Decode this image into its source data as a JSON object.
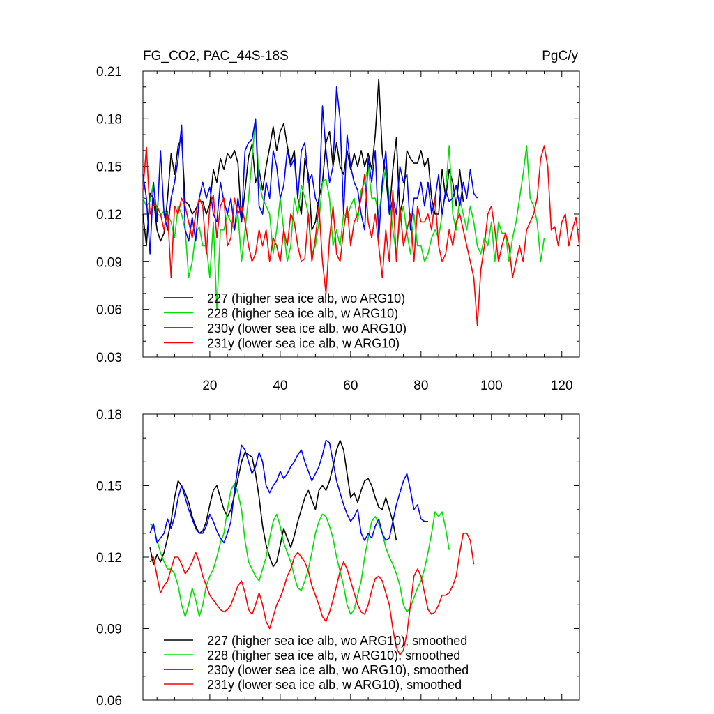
{
  "chart_data": [
    {
      "type": "line",
      "title": "FG_CO2, PAC_44S-18S",
      "units": "PgC/y",
      "xlabel": "",
      "ylabel": "",
      "xlim": [
        1,
        125
      ],
      "ylim": [
        0.03,
        0.21
      ],
      "yticks": [
        "0.03",
        "0.06",
        "0.09",
        "0.12",
        "0.15",
        "0.18",
        "0.21"
      ],
      "xticks": [
        "20",
        "40",
        "60",
        "80",
        "100",
        "120"
      ],
      "legend_position": "bottom-left",
      "series": [
        {
          "name": "227 (higher sea ice alb, wo ARG10)",
          "color": "#000000",
          "x0": 1,
          "values": [
            0.12,
            0.1,
            0.133,
            0.13,
            0.11,
            0.103,
            0.108,
            0.13,
            0.158,
            0.145,
            0.163,
            0.168,
            0.128,
            0.126,
            0.12,
            0.123,
            0.128,
            0.128,
            0.12,
            0.126,
            0.148,
            0.14,
            0.155,
            0.148,
            0.158,
            0.155,
            0.16,
            0.152,
            0.115,
            0.135,
            0.156,
            0.164,
            0.14,
            0.148,
            0.135,
            0.15,
            0.162,
            0.175,
            0.16,
            0.172,
            0.177,
            0.163,
            0.152,
            0.16,
            0.13,
            0.12,
            0.155,
            0.145,
            0.11,
            0.115,
            0.13,
            0.14,
            0.165,
            0.172,
            0.15,
            0.165,
            0.15,
            0.145,
            0.16,
            0.148,
            0.158,
            0.15,
            0.16,
            0.15,
            0.158,
            0.148,
            0.17,
            0.205,
            0.158,
            0.145,
            0.12,
            0.148,
            0.168,
            0.12,
            0.13,
            0.16,
            0.155,
            0.152,
            0.152,
            0.16,
            0.15,
            0.155,
            0.13,
            0.12,
            0.12,
            0.148,
            0.13,
            0.148,
            0.14,
            0.125,
            0.148,
            0.128
          ]
        },
        {
          "name": "228 (higher sea ice alb, w ARG10)",
          "color": "#00e000",
          "x0": 1,
          "values": [
            0.13,
            0.125,
            0.128,
            0.14,
            0.12,
            0.119,
            0.122,
            0.12,
            0.115,
            0.105,
            0.125,
            0.12,
            0.11,
            0.08,
            0.09,
            0.108,
            0.112,
            0.1,
            0.1,
            0.08,
            0.115,
            0.06,
            0.11,
            0.11,
            0.12,
            0.115,
            0.11,
            0.12,
            0.09,
            0.11,
            0.13,
            0.155,
            0.18,
            0.14,
            0.13,
            0.125,
            0.12,
            0.095,
            0.11,
            0.13,
            0.11,
            0.09,
            0.1,
            0.13,
            0.12,
            0.138,
            0.13,
            0.12,
            0.095,
            0.1,
            0.115,
            0.14,
            0.142,
            0.13,
            0.1,
            0.11,
            0.1,
            0.12,
            0.118,
            0.125,
            0.13,
            0.115,
            0.135,
            0.14,
            0.15,
            0.13,
            0.13,
            0.12,
            0.135,
            0.15,
            0.13,
            0.11,
            0.095,
            0.115,
            0.125,
            0.108,
            0.095,
            0.12,
            0.1,
            0.1,
            0.09,
            0.095,
            0.105,
            0.11,
            0.105,
            0.12,
            0.135,
            0.163,
            0.12,
            0.11,
            0.13,
            0.12,
            0.11,
            0.125,
            0.115,
            0.1,
            0.095,
            0.105,
            0.1,
            0.115,
            0.09,
            0.115,
            0.108,
            0.108,
            0.09,
            0.105,
            0.115,
            0.13,
            0.145,
            0.163,
            0.13,
            0.125,
            0.115,
            0.09,
            0.105
          ]
        },
        {
          "name": "230y (lower sea ice alb, wo ARG10)",
          "color": "#0000ff",
          "x0": 1,
          "values": [
            0.145,
            0.13,
            0.095,
            0.14,
            0.115,
            0.16,
            0.12,
            0.11,
            0.13,
            0.14,
            0.155,
            0.176,
            0.11,
            0.103,
            0.118,
            0.103,
            0.13,
            0.14,
            0.13,
            0.137,
            0.12,
            0.115,
            0.14,
            0.128,
            0.12,
            0.13,
            0.11,
            0.13,
            0.115,
            0.16,
            0.165,
            0.167,
            0.18,
            0.125,
            0.12,
            0.14,
            0.13,
            0.16,
            0.15,
            0.13,
            0.138,
            0.16,
            0.15,
            0.155,
            0.13,
            0.16,
            0.165,
            0.14,
            0.145,
            0.13,
            0.125,
            0.188,
            0.16,
            0.14,
            0.15,
            0.2,
            0.18,
            0.12,
            0.17,
            0.15,
            0.14,
            0.135,
            0.12,
            0.11,
            0.155,
            0.14,
            0.16,
            0.105,
            0.14,
            0.16,
            0.12,
            0.13,
            0.12,
            0.15,
            0.14,
            0.145,
            0.11,
            0.13,
            0.13,
            0.14,
            0.125,
            0.14,
            0.12,
            0.13,
            0.145,
            0.12,
            0.135,
            0.128,
            0.13,
            0.138,
            0.125,
            0.14,
            0.13,
            0.148,
            0.133,
            0.13
          ]
        },
        {
          "name": "231y (lower sea ice alb, w ARG10)",
          "color": "#ff0000",
          "x0": 1,
          "values": [
            0.135,
            0.162,
            0.12,
            0.126,
            0.125,
            0.12,
            0.11,
            0.122,
            0.08,
            0.125,
            0.12,
            0.13,
            0.125,
            0.115,
            0.105,
            0.12,
            0.13,
            0.125,
            0.095,
            0.125,
            0.132,
            0.105,
            0.125,
            0.13,
            0.1,
            0.105,
            0.13,
            0.12,
            0.125,
            0.115,
            0.1,
            0.09,
            0.095,
            0.11,
            0.1,
            0.11,
            0.09,
            0.105,
            0.1,
            0.09,
            0.11,
            0.1,
            0.12,
            0.115,
            0.1,
            0.09,
            0.092,
            0.12,
            0.09,
            0.105,
            0.125,
            0.09,
            0.07,
            0.105,
            0.125,
            0.095,
            0.09,
            0.11,
            0.125,
            0.1,
            0.115,
            0.12,
            0.13,
            0.145,
            0.115,
            0.105,
            0.12,
            0.1,
            0.08,
            0.11,
            0.09,
            0.135,
            0.09,
            0.125,
            0.1,
            0.11,
            0.12,
            0.09,
            0.125,
            0.115,
            0.115,
            0.12,
            0.11,
            0.13,
            0.1,
            0.09,
            0.095,
            0.11,
            0.1,
            0.115,
            0.12,
            0.11,
            0.1,
            0.09,
            0.08,
            0.05,
            0.085,
            0.1,
            0.12,
            0.125,
            0.11,
            0.09,
            0.1,
            0.108,
            0.1,
            0.08,
            0.09,
            0.1,
            0.09,
            0.11,
            0.115,
            0.12,
            0.13,
            0.155,
            0.163,
            0.15,
            0.11,
            0.112,
            0.1,
            0.115,
            0.12,
            0.1,
            0.11,
            0.118,
            0.1
          ]
        }
      ]
    },
    {
      "type": "line",
      "title": "",
      "xlabel": "",
      "ylabel": "",
      "xlim": [
        1,
        125
      ],
      "ylim": [
        0.06,
        0.18
      ],
      "yticks": [
        "0.06",
        "0.09",
        "0.12",
        "0.15",
        "0.18"
      ],
      "legend_position": "bottom-left",
      "series": [
        {
          "name": "227 (higher sea ice alb, wo ARG10), smoothed",
          "color": "#000000",
          "x0": 3,
          "values": [
            0.124,
            0.117,
            0.121,
            0.118,
            0.122,
            0.128,
            0.135,
            0.145,
            0.152,
            0.15,
            0.147,
            0.143,
            0.137,
            0.133,
            0.13,
            0.131,
            0.135,
            0.142,
            0.148,
            0.15,
            0.145,
            0.14,
            0.137,
            0.14,
            0.146,
            0.153,
            0.16,
            0.164,
            0.163,
            0.162,
            0.155,
            0.145,
            0.133,
            0.125,
            0.12,
            0.116,
            0.118,
            0.125,
            0.132,
            0.128,
            0.124,
            0.129,
            0.135,
            0.14,
            0.145,
            0.148,
            0.144,
            0.14,
            0.148,
            0.15,
            0.148,
            0.152,
            0.158,
            0.165,
            0.169,
            0.165,
            0.155,
            0.145,
            0.147,
            0.143,
            0.148,
            0.152,
            0.153,
            0.15,
            0.145,
            0.141,
            0.14,
            0.145,
            0.14,
            0.135,
            0.127
          ]
        },
        {
          "name": "228 (higher sea ice alb, w ARG10), smoothed",
          "color": "#00e000",
          "x0": 3,
          "values": [
            0.134,
            0.133,
            0.127,
            0.122,
            0.118,
            0.115,
            0.115,
            0.113,
            0.108,
            0.1,
            0.095,
            0.1,
            0.107,
            0.102,
            0.095,
            0.1,
            0.108,
            0.112,
            0.115,
            0.12,
            0.126,
            0.13,
            0.14,
            0.148,
            0.151,
            0.147,
            0.14,
            0.127,
            0.118,
            0.115,
            0.112,
            0.11,
            0.115,
            0.12,
            0.128,
            0.135,
            0.138,
            0.133,
            0.126,
            0.122,
            0.118,
            0.112,
            0.107,
            0.106,
            0.11,
            0.115,
            0.122,
            0.13,
            0.135,
            0.138,
            0.137,
            0.133,
            0.128,
            0.12,
            0.114,
            0.108,
            0.1,
            0.096,
            0.098,
            0.104,
            0.11,
            0.12,
            0.128,
            0.135,
            0.137,
            0.134,
            0.13,
            0.124,
            0.12,
            0.117,
            0.113,
            0.108,
            0.1,
            0.097,
            0.099,
            0.103,
            0.107,
            0.11,
            0.115,
            0.122,
            0.13,
            0.139,
            0.137,
            0.139,
            0.132,
            0.123
          ]
        },
        {
          "name": "230y (lower sea ice alb, wo ARG10), smoothed",
          "color": "#0000ff",
          "x0": 3,
          "values": [
            0.13,
            0.134,
            0.126,
            0.128,
            0.13,
            0.136,
            0.132,
            0.137,
            0.145,
            0.15,
            0.145,
            0.14,
            0.136,
            0.132,
            0.13,
            0.13,
            0.133,
            0.138,
            0.135,
            0.131,
            0.128,
            0.126,
            0.13,
            0.135,
            0.148,
            0.158,
            0.167,
            0.165,
            0.16,
            0.155,
            0.158,
            0.164,
            0.16,
            0.15,
            0.147,
            0.15,
            0.152,
            0.156,
            0.153,
            0.155,
            0.158,
            0.16,
            0.163,
            0.165,
            0.16,
            0.156,
            0.152,
            0.155,
            0.158,
            0.163,
            0.169,
            0.168,
            0.16,
            0.152,
            0.147,
            0.142,
            0.138,
            0.135,
            0.137,
            0.14,
            0.13,
            0.127,
            0.13,
            0.128,
            0.133,
            0.136,
            0.13,
            0.127,
            0.128,
            0.135,
            0.142,
            0.147,
            0.152,
            0.155,
            0.148,
            0.14,
            0.142,
            0.136,
            0.135,
            0.135
          ]
        },
        {
          "name": "231y (lower sea ice alb, w ARG10), smoothed",
          "color": "#ff0000",
          "x0": 3,
          "values": [
            0.118,
            0.12,
            0.112,
            0.105,
            0.108,
            0.11,
            0.115,
            0.12,
            0.12,
            0.117,
            0.113,
            0.115,
            0.118,
            0.122,
            0.118,
            0.112,
            0.108,
            0.104,
            0.102,
            0.1,
            0.098,
            0.097,
            0.098,
            0.1,
            0.104,
            0.108,
            0.11,
            0.105,
            0.098,
            0.096,
            0.1,
            0.105,
            0.1,
            0.093,
            0.09,
            0.095,
            0.1,
            0.103,
            0.107,
            0.112,
            0.115,
            0.12,
            0.122,
            0.12,
            0.118,
            0.114,
            0.108,
            0.104,
            0.1,
            0.095,
            0.093,
            0.097,
            0.102,
            0.108,
            0.114,
            0.118,
            0.115,
            0.11,
            0.105,
            0.1,
            0.097,
            0.096,
            0.1,
            0.106,
            0.111,
            0.112,
            0.11,
            0.105,
            0.1,
            0.09,
            0.082,
            0.079,
            0.081,
            0.088,
            0.1,
            0.112,
            0.115,
            0.112,
            0.105,
            0.098,
            0.096,
            0.097,
            0.1,
            0.104,
            0.104,
            0.105,
            0.108,
            0.112,
            0.122,
            0.13,
            0.13,
            0.127,
            0.117
          ]
        }
      ]
    }
  ]
}
